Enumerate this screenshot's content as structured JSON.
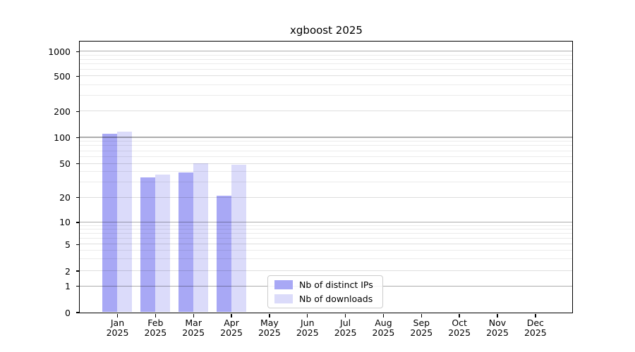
{
  "chart_data": {
    "type": "bar",
    "title": "xgboost 2025",
    "categories": [
      "Jan",
      "Feb",
      "Mar",
      "Apr",
      "May",
      "Jun",
      "Jul",
      "Aug",
      "Sep",
      "Oct",
      "Nov",
      "Dec"
    ],
    "x_year_label": "2025",
    "series": [
      {
        "name": "Nb of distinct IPs",
        "color": "#a8a8f5",
        "values": [
          109,
          34,
          39,
          21,
          0,
          0,
          0,
          0,
          0,
          0,
          0,
          0
        ]
      },
      {
        "name": "Nb of downloads",
        "color": "#dbdbfa",
        "values": [
          117,
          37,
          50,
          48,
          0,
          0,
          0,
          0,
          0,
          0,
          0,
          0
        ]
      }
    ],
    "yticks": [
      0,
      1,
      2,
      5,
      10,
      20,
      50,
      100,
      200,
      500,
      1000
    ],
    "ylim": [
      0,
      1050
    ],
    "yscale": "symlog",
    "grid": true,
    "legend": {
      "position": "bottom-center",
      "entries": [
        "Nb of distinct IPs",
        "Nb of downloads"
      ]
    },
    "colors": {
      "bar_distinct_ips": "#a8a8f5",
      "bar_downloads": "#dbdbfa",
      "major_gridline": "rgba(0,0,0,0.32)",
      "labeled_gridline": "rgba(0,0,0,0.13)",
      "minor_gridline": "rgba(0,0,0,0.08)",
      "axis_frame": "#000000",
      "legend_border": "#cccccc",
      "text": "#000000",
      "background": "#ffffff"
    }
  }
}
